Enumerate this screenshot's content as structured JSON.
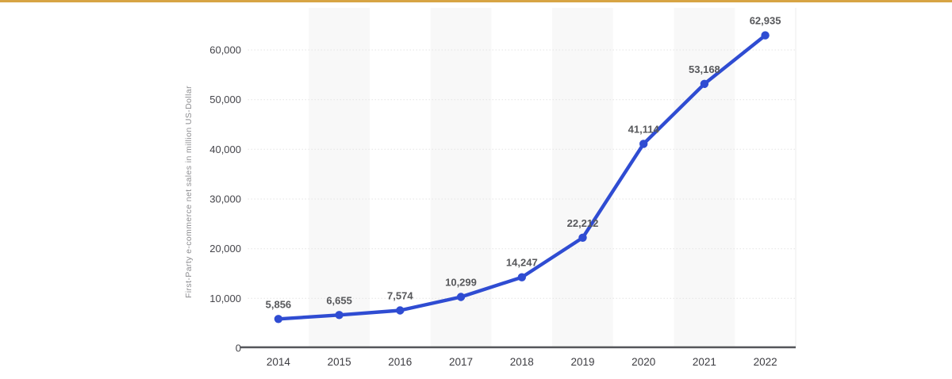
{
  "page": {
    "background": "#ffffff",
    "top_accent_bar_color": "#d7a444"
  },
  "colors": {
    "series_line": "#2f4cd2",
    "band": "#f8f8f8",
    "gridline": "#e3e3e3",
    "axis_line": "#55565a",
    "data_label": "#57585b",
    "tick_label": "#44444a",
    "year_label": "#3c3c41",
    "axis_title": "#8e8e91",
    "plot_right_border": "#ececec"
  },
  "chart_data": {
    "type": "line",
    "title": "",
    "xlabel": "",
    "ylabel": "First-Party e-commerce net sales in million US-Dollar",
    "categories": [
      "2014",
      "2015",
      "2016",
      "2017",
      "2018",
      "2019",
      "2020",
      "2021",
      "2022"
    ],
    "series": [
      {
        "name": "First-Party e-commerce net sales in million US-Dollar",
        "values": [
          5856,
          6655,
          7574,
          10299,
          14247,
          22212,
          41114,
          53168,
          62935
        ],
        "value_labels": [
          "5,856",
          "6,655",
          "7,574",
          "10,299",
          "14,247",
          "22,212",
          "41,114",
          "53,168",
          "62,935"
        ],
        "color": "#2f4cd2"
      }
    ],
    "y_axis": {
      "tick_values": [
        0,
        10000,
        20000,
        30000,
        40000,
        50000,
        60000
      ],
      "tick_labels": [
        "0",
        "10,000",
        "20,000",
        "30,000",
        "40,000",
        "50,000",
        "60,000"
      ],
      "range": [
        0,
        68000
      ]
    },
    "grid": "horizontal-dotted",
    "legend": "none",
    "column_banding": {
      "banded_category_indexes": [
        1,
        3,
        5,
        7
      ],
      "band_color": "#f8f8f8"
    }
  }
}
